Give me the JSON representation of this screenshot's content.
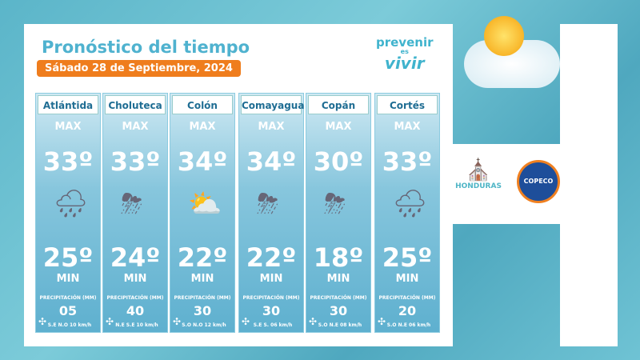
{
  "header": {
    "title": "Pronóstico del tiempo",
    "date": "Sábado 28 de Septiembre, 2024"
  },
  "brand": {
    "line1": "prevenir",
    "line2": "es",
    "line3": "vivir"
  },
  "logos": {
    "honduras": "HONDURAS",
    "copeco": "COPECO"
  },
  "labels": {
    "max": "MAX",
    "min": "MIN",
    "precip": "PRECIPITACIÓN (MM)"
  },
  "colors": {
    "accent": "#ef7d1d",
    "title": "#4fb2cf"
  },
  "cards": [
    {
      "name": "Atlántida",
      "max": "33º",
      "min": "25º",
      "icon": "cloud-rain-icon",
      "precip": "05",
      "wind": "S.E N.O 10 km/h"
    },
    {
      "name": "Choluteca",
      "max": "33º",
      "min": "24º",
      "icon": "cloud-storm-icon",
      "precip": "40",
      "wind": "N.E S.E 10 km/h"
    },
    {
      "name": "Colón",
      "max": "34º",
      "min": "22º",
      "icon": "sun-cloud-icon",
      "precip": "30",
      "wind": "S.O N.O 12 km/h"
    },
    {
      "name": "Comayagua",
      "max": "34º",
      "min": "22º",
      "icon": "cloud-storm-icon",
      "precip": "30",
      "wind": "S.E S. 06 km/h"
    },
    {
      "name": "Copán",
      "max": "30º",
      "min": "18º",
      "icon": "cloud-storm-icon",
      "precip": "30",
      "wind": "S.O N.E 08 km/h"
    },
    {
      "name": "Cortés",
      "max": "33º",
      "min": "25º",
      "icon": "cloud-rain-icon",
      "precip": "20",
      "wind": "S.O N.E 06 km/h"
    }
  ]
}
